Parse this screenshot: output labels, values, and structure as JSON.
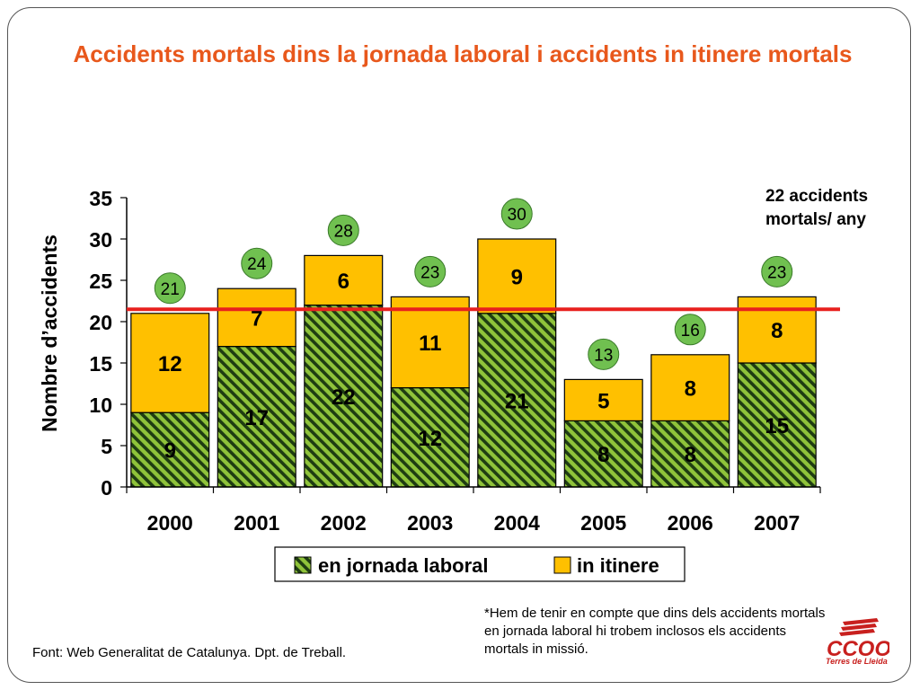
{
  "slide": {
    "title": "Accidents mortals dins la jornada laboral i accidents in itinere mortals",
    "note_right_line1": "22 accidents",
    "note_right_line2": "mortals/ any",
    "footnote": "*Hem de tenir en compte que dins dels accidents mortals en jornada laboral hi trobem inclosos els accidents mortals in missió.",
    "source": "Font: Web Generalitat de Catalunya. Dpt. de Treball.",
    "logo_text": "CCOO",
    "logo_subtitle": "Terres de Lleida"
  },
  "chart_data": {
    "type": "bar",
    "stacked": true,
    "title": "Accidents mortals dins la jornada laboral i accidents in itinere mortals",
    "categories": [
      "2000",
      "2001",
      "2002",
      "2003",
      "2004",
      "2005",
      "2006",
      "2007"
    ],
    "series": [
      {
        "name": "en jornada laboral",
        "values": [
          9,
          17,
          22,
          12,
          21,
          8,
          8,
          15
        ],
        "color": "#8fc33a",
        "pattern": "diagonal-stripes"
      },
      {
        "name": "in itinere",
        "values": [
          12,
          7,
          6,
          11,
          9,
          5,
          8,
          8
        ],
        "color": "#ffc000"
      }
    ],
    "totals": [
      21,
      24,
      28,
      23,
      30,
      13,
      16,
      23
    ],
    "reference_line": {
      "value": 21.5,
      "color": "#e8201e"
    },
    "xlabel": "",
    "ylabel": "Nombre d’accidents",
    "ylim": [
      0,
      35
    ],
    "yticks": [
      0,
      5,
      10,
      15,
      20,
      25,
      30,
      35
    ],
    "grid": false,
    "legend_position": "bottom",
    "colors": {
      "green": "#8fc33a",
      "yellow": "#ffc000",
      "line": "#e8201e",
      "bubble": "#70c050",
      "title": "#e8581c"
    }
  }
}
